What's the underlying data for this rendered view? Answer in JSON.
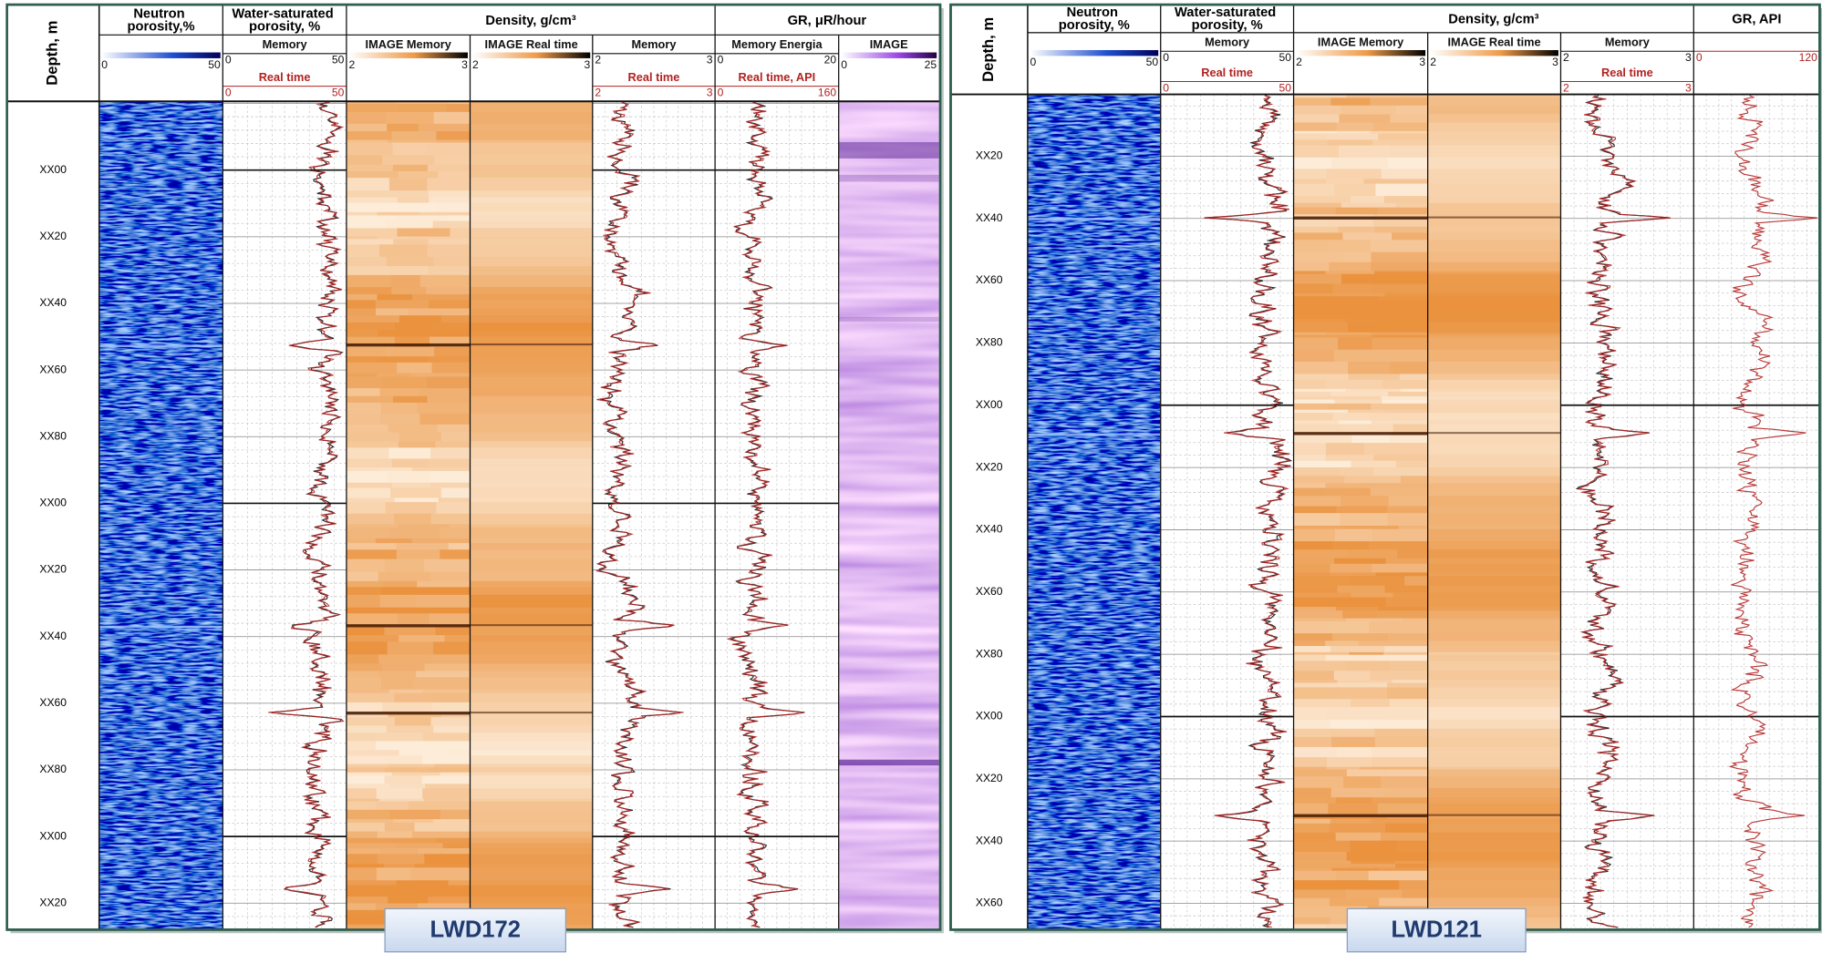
{
  "panels": [
    {
      "badge": "LWD172",
      "depth_title": "Depth, m",
      "depth_labels": [
        "XX00",
        "XX20",
        "XX40",
        "XX60",
        "XX80",
        "XX00",
        "XX20",
        "XX40",
        "XX60",
        "XX80",
        "XX00",
        "XX20"
      ],
      "groups": [
        {
          "title": "Neutron porosity,%",
          "columns": [
            {
              "kind": "image",
              "palette": "blue",
              "scales": [
                {
                  "min": 0,
                  "max": 50,
                  "color": "#111111"
                }
              ]
            }
          ]
        },
        {
          "title": "Water-saturated porosity, %",
          "columns": [
            {
              "kind": "curve",
              "scales": [
                {
                  "label": "Memory",
                  "min": 0,
                  "max": 50,
                  "color": "#111111"
                },
                {
                  "label": "Real time",
                  "min": 0,
                  "max": 50,
                  "color": "#b22222"
                }
              ]
            }
          ]
        },
        {
          "title": "Density, g/cm³",
          "columns": [
            {
              "kind": "image",
              "palette": "orange",
              "scales": [
                {
                  "label": "IMAGE  Memory",
                  "min": 2,
                  "max": 3,
                  "color": "#111111"
                }
              ]
            },
            {
              "kind": "image",
              "palette": "orange",
              "scales": [
                {
                  "label": "IMAGE  Real time",
                  "min": 2,
                  "max": 3,
                  "color": "#111111"
                }
              ]
            },
            {
              "kind": "curve",
              "scales": [
                {
                  "label": "Memory",
                  "min": 2,
                  "max": 3,
                  "color": "#111111"
                },
                {
                  "label": "Real time",
                  "min": 2,
                  "max": 3,
                  "color": "#b22222"
                }
              ]
            }
          ]
        },
        {
          "title": "GR, μR/hour",
          "columns": [
            {
              "kind": "curve",
              "scales": [
                {
                  "label": "Memory  Energia",
                  "min": 0,
                  "max": 20,
                  "color": "#111111"
                },
                {
                  "label": "Real time, API",
                  "min": 0,
                  "max": 160,
                  "color": "#b22222"
                }
              ]
            },
            {
              "kind": "image",
              "palette": "purple",
              "scales": [
                {
                  "label": "IMAGE",
                  "min": 0,
                  "max": 25,
                  "color": "#111111"
                }
              ]
            }
          ]
        }
      ]
    },
    {
      "badge": "LWD121",
      "depth_title": "Depth, m",
      "depth_labels": [
        "XX20",
        "XX40",
        "XX60",
        "XX80",
        "XX00",
        "XX20",
        "XX40",
        "XX60",
        "XX80",
        "XX00",
        "XX20",
        "XX40",
        "XX60"
      ],
      "groups": [
        {
          "title": "Neutron porosity, %",
          "columns": [
            {
              "kind": "image",
              "palette": "blue",
              "scales": [
                {
                  "min": 0,
                  "max": 50,
                  "color": "#111111"
                }
              ]
            }
          ]
        },
        {
          "title": "Water-saturated porosity, %",
          "columns": [
            {
              "kind": "curve",
              "scales": [
                {
                  "label": "Memory",
                  "min": 0,
                  "max": 50,
                  "color": "#111111"
                },
                {
                  "label": "Real time",
                  "min": 0,
                  "max": 50,
                  "color": "#b22222"
                }
              ]
            }
          ]
        },
        {
          "title": "Density, g/cm³",
          "columns": [
            {
              "kind": "image",
              "palette": "orange",
              "scales": [
                {
                  "label": "IMAGE  Memory",
                  "min": 2,
                  "max": 3,
                  "color": "#111111"
                }
              ]
            },
            {
              "kind": "image",
              "palette": "orange",
              "scales": [
                {
                  "label": "IMAGE  Real time",
                  "min": 2,
                  "max": 3,
                  "color": "#111111"
                }
              ]
            },
            {
              "kind": "curve",
              "scales": [
                {
                  "label": "Memory",
                  "min": 2,
                  "max": 3,
                  "color": "#111111"
                },
                {
                  "label": "Real time",
                  "min": 2,
                  "max": 3,
                  "color": "#b22222"
                }
              ]
            }
          ]
        },
        {
          "title": "GR, API",
          "columns": [
            {
              "kind": "curve",
              "scales": [
                {
                  "min": 0,
                  "max": 120,
                  "color": "#b22222"
                }
              ]
            }
          ]
        }
      ]
    }
  ]
}
